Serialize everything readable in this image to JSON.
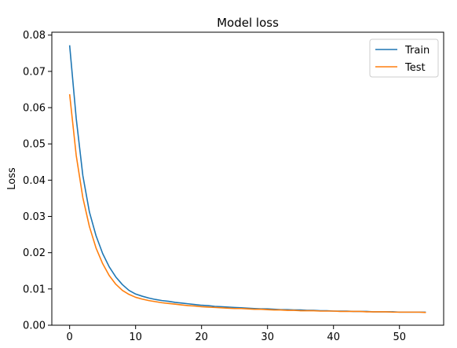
{
  "chart_data": {
    "type": "line",
    "title": "Model loss",
    "xlabel": "",
    "ylabel": "Loss",
    "xlim": [
      -2.7,
      56.7
    ],
    "ylim": [
      0.0,
      0.0808
    ],
    "xticks": [
      0,
      10,
      20,
      30,
      40,
      50
    ],
    "yticks": [
      0.0,
      0.01,
      0.02,
      0.03,
      0.04,
      0.05,
      0.06,
      0.07,
      0.08
    ],
    "ytick_labels": [
      "0.00",
      "0.01",
      "0.02",
      "0.03",
      "0.04",
      "0.05",
      "0.06",
      "0.07",
      "0.08"
    ],
    "grid": false,
    "legend": "top-right",
    "x": [
      0,
      1,
      2,
      3,
      4,
      5,
      6,
      7,
      8,
      9,
      10,
      11,
      12,
      13,
      14,
      15,
      16,
      17,
      18,
      19,
      20,
      21,
      22,
      23,
      24,
      25,
      26,
      27,
      28,
      29,
      30,
      31,
      32,
      33,
      34,
      35,
      36,
      37,
      38,
      39,
      40,
      41,
      42,
      43,
      44,
      45,
      46,
      47,
      48,
      49,
      50,
      51,
      52,
      53,
      54
    ],
    "series": [
      {
        "name": "Train",
        "color": "#1f77b4",
        "values": [
          0.0772,
          0.057,
          0.0413,
          0.0312,
          0.0247,
          0.0198,
          0.0161,
          0.0133,
          0.0112,
          0.0096,
          0.0086,
          0.008,
          0.0075,
          0.0071,
          0.0068,
          0.0066,
          0.0063,
          0.0061,
          0.0059,
          0.0057,
          0.0055,
          0.0054,
          0.0052,
          0.0051,
          0.005,
          0.0049,
          0.0048,
          0.0047,
          0.0046,
          0.0045,
          0.0045,
          0.0044,
          0.0043,
          0.0043,
          0.0042,
          0.0042,
          0.0041,
          0.0041,
          0.004,
          0.004,
          0.0039,
          0.0039,
          0.0039,
          0.0038,
          0.0038,
          0.0038,
          0.0037,
          0.0037,
          0.0037,
          0.0037,
          0.0036,
          0.0036,
          0.0036,
          0.0036,
          0.0036
        ]
      },
      {
        "name": "Test",
        "color": "#ff7f0e",
        "values": [
          0.0637,
          0.0468,
          0.0352,
          0.0272,
          0.0213,
          0.017,
          0.0137,
          0.0113,
          0.0096,
          0.0085,
          0.0077,
          0.0072,
          0.0068,
          0.0065,
          0.0062,
          0.006,
          0.0058,
          0.0056,
          0.0054,
          0.0053,
          0.0051,
          0.005,
          0.0049,
          0.0048,
          0.0047,
          0.0046,
          0.0046,
          0.0045,
          0.0044,
          0.0044,
          0.0043,
          0.0042,
          0.0042,
          0.0041,
          0.0041,
          0.004,
          0.004,
          0.004,
          0.0039,
          0.0039,
          0.0039,
          0.0038,
          0.0038,
          0.0038,
          0.0038,
          0.0037,
          0.0037,
          0.0037,
          0.0037,
          0.0036,
          0.0036,
          0.0036,
          0.0036,
          0.0036,
          0.0035
        ]
      }
    ]
  }
}
